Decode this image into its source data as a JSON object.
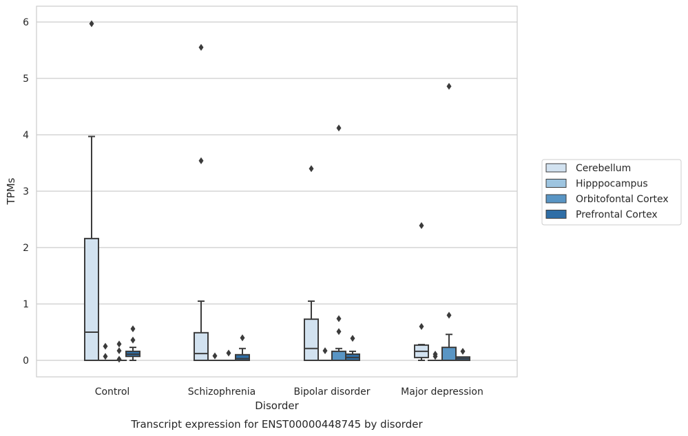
{
  "chart_data": {
    "type": "box",
    "title": "Transcript expression for ENST00000448745 by disorder",
    "xlabel": "Disorder",
    "ylabel": "TPMs",
    "categories": [
      "Control",
      "Schizophrenia",
      "Bipolar disorder",
      "Major depression"
    ],
    "ylim": [
      -0.3,
      6.27
    ],
    "yticks": [
      "0",
      "1",
      "2",
      "3",
      "4",
      "5",
      "6"
    ],
    "grid": true,
    "legend": "right",
    "series": [
      {
        "name": "Cerebellum",
        "color": "#d2e2f0",
        "boxes": [
          {
            "q1": 0,
            "median": 0.5,
            "q3": 2.16,
            "low": 0,
            "high": 3.97,
            "outliers": [
              5.97
            ]
          },
          {
            "q1": 0,
            "median": 0.12,
            "q3": 0.49,
            "low": 0,
            "high": 1.05,
            "outliers": [
              3.54,
              5.55
            ]
          },
          {
            "q1": 0,
            "median": 0.21,
            "q3": 0.73,
            "low": 0,
            "high": 1.05,
            "outliers": [
              3.4
            ]
          },
          {
            "q1": 0.05,
            "median": 0.16,
            "q3": 0.27,
            "low": 0,
            "high": 0.28,
            "outliers": [
              0.6,
              2.39
            ]
          }
        ]
      },
      {
        "name": "Hipppocampus",
        "color": "#9ec5e0",
        "boxes": [
          {
            "q1": 0,
            "median": 0,
            "q3": 0,
            "low": 0,
            "high": 0,
            "outliers": [
              0.07,
              0.25
            ]
          },
          {
            "q1": 0,
            "median": 0,
            "q3": 0,
            "low": 0,
            "high": 0,
            "outliers": [
              0.08
            ]
          },
          {
            "q1": 0,
            "median": 0,
            "q3": 0,
            "low": 0,
            "high": 0,
            "outliers": [
              0.17
            ]
          },
          {
            "q1": 0,
            "median": 0,
            "q3": 0,
            "low": 0,
            "high": 0,
            "outliers": [
              0.07,
              0.11
            ]
          }
        ]
      },
      {
        "name": "Orbitofontal Cortex",
        "color": "#5995c4",
        "boxes": [
          {
            "q1": 0,
            "median": 0,
            "q3": 0,
            "low": 0,
            "high": 0,
            "outliers": [
              0.02,
              0.17,
              0.29
            ]
          },
          {
            "q1": 0,
            "median": 0,
            "q3": 0,
            "low": 0,
            "high": 0,
            "outliers": [
              0.13
            ]
          },
          {
            "q1": 0,
            "median": 0,
            "q3": 0.16,
            "low": 0,
            "high": 0.21,
            "outliers": [
              0.51,
              0.74,
              4.12
            ]
          },
          {
            "q1": 0,
            "median": 0,
            "q3": 0.23,
            "low": 0,
            "high": 0.46,
            "outliers": [
              0.8,
              4.86
            ]
          }
        ]
      },
      {
        "name": "Prefrontal Cortex",
        "color": "#2f6ea6",
        "boxes": [
          {
            "q1": 0.07,
            "median": 0.11,
            "q3": 0.16,
            "low": 0,
            "high": 0.23,
            "outliers": [
              0.36,
              0.56
            ]
          },
          {
            "q1": 0,
            "median": 0.03,
            "q3": 0.1,
            "low": 0,
            "high": 0.21,
            "outliers": [
              0.4
            ]
          },
          {
            "q1": 0,
            "median": 0.05,
            "q3": 0.11,
            "low": 0,
            "high": 0.16,
            "outliers": [
              0.39
            ]
          },
          {
            "q1": 0,
            "median": 0.03,
            "q3": 0.06,
            "low": 0,
            "high": 0.06,
            "outliers": [
              0.16
            ]
          }
        ]
      }
    ]
  }
}
